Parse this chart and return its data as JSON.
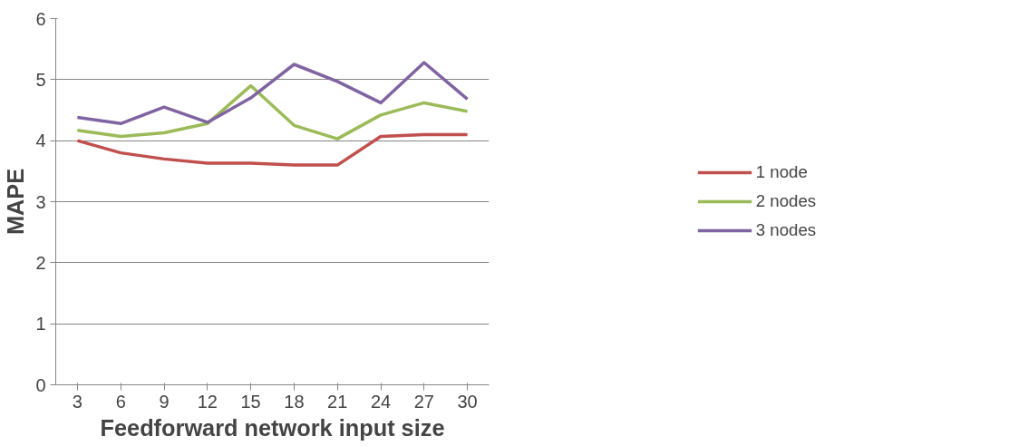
{
  "chart_data": {
    "type": "line",
    "xlabel": "Feedforward network input size",
    "ylabel": "MAPE",
    "categories": [
      "3",
      "6",
      "9",
      "12",
      "15",
      "18",
      "21",
      "24",
      "27",
      "30"
    ],
    "ylim": [
      0,
      6
    ],
    "yticks": [
      0,
      1,
      2,
      3,
      4,
      5,
      6
    ],
    "grid": "y",
    "legend": "right",
    "series": [
      {
        "name": "1 node",
        "color": "#c0504d",
        "values": [
          4.0,
          3.8,
          3.7,
          3.63,
          3.63,
          3.6,
          3.6,
          4.07,
          4.1,
          4.1
        ]
      },
      {
        "name": "2 nodes",
        "color": "#9bbb59",
        "values": [
          4.17,
          4.07,
          4.13,
          4.28,
          4.9,
          4.25,
          4.03,
          4.42,
          4.62,
          4.48
        ]
      },
      {
        "name": "3 nodes",
        "color": "#8064a2",
        "values": [
          4.38,
          4.28,
          4.55,
          4.3,
          4.7,
          5.25,
          4.97,
          4.62,
          5.28,
          4.68
        ]
      }
    ]
  }
}
